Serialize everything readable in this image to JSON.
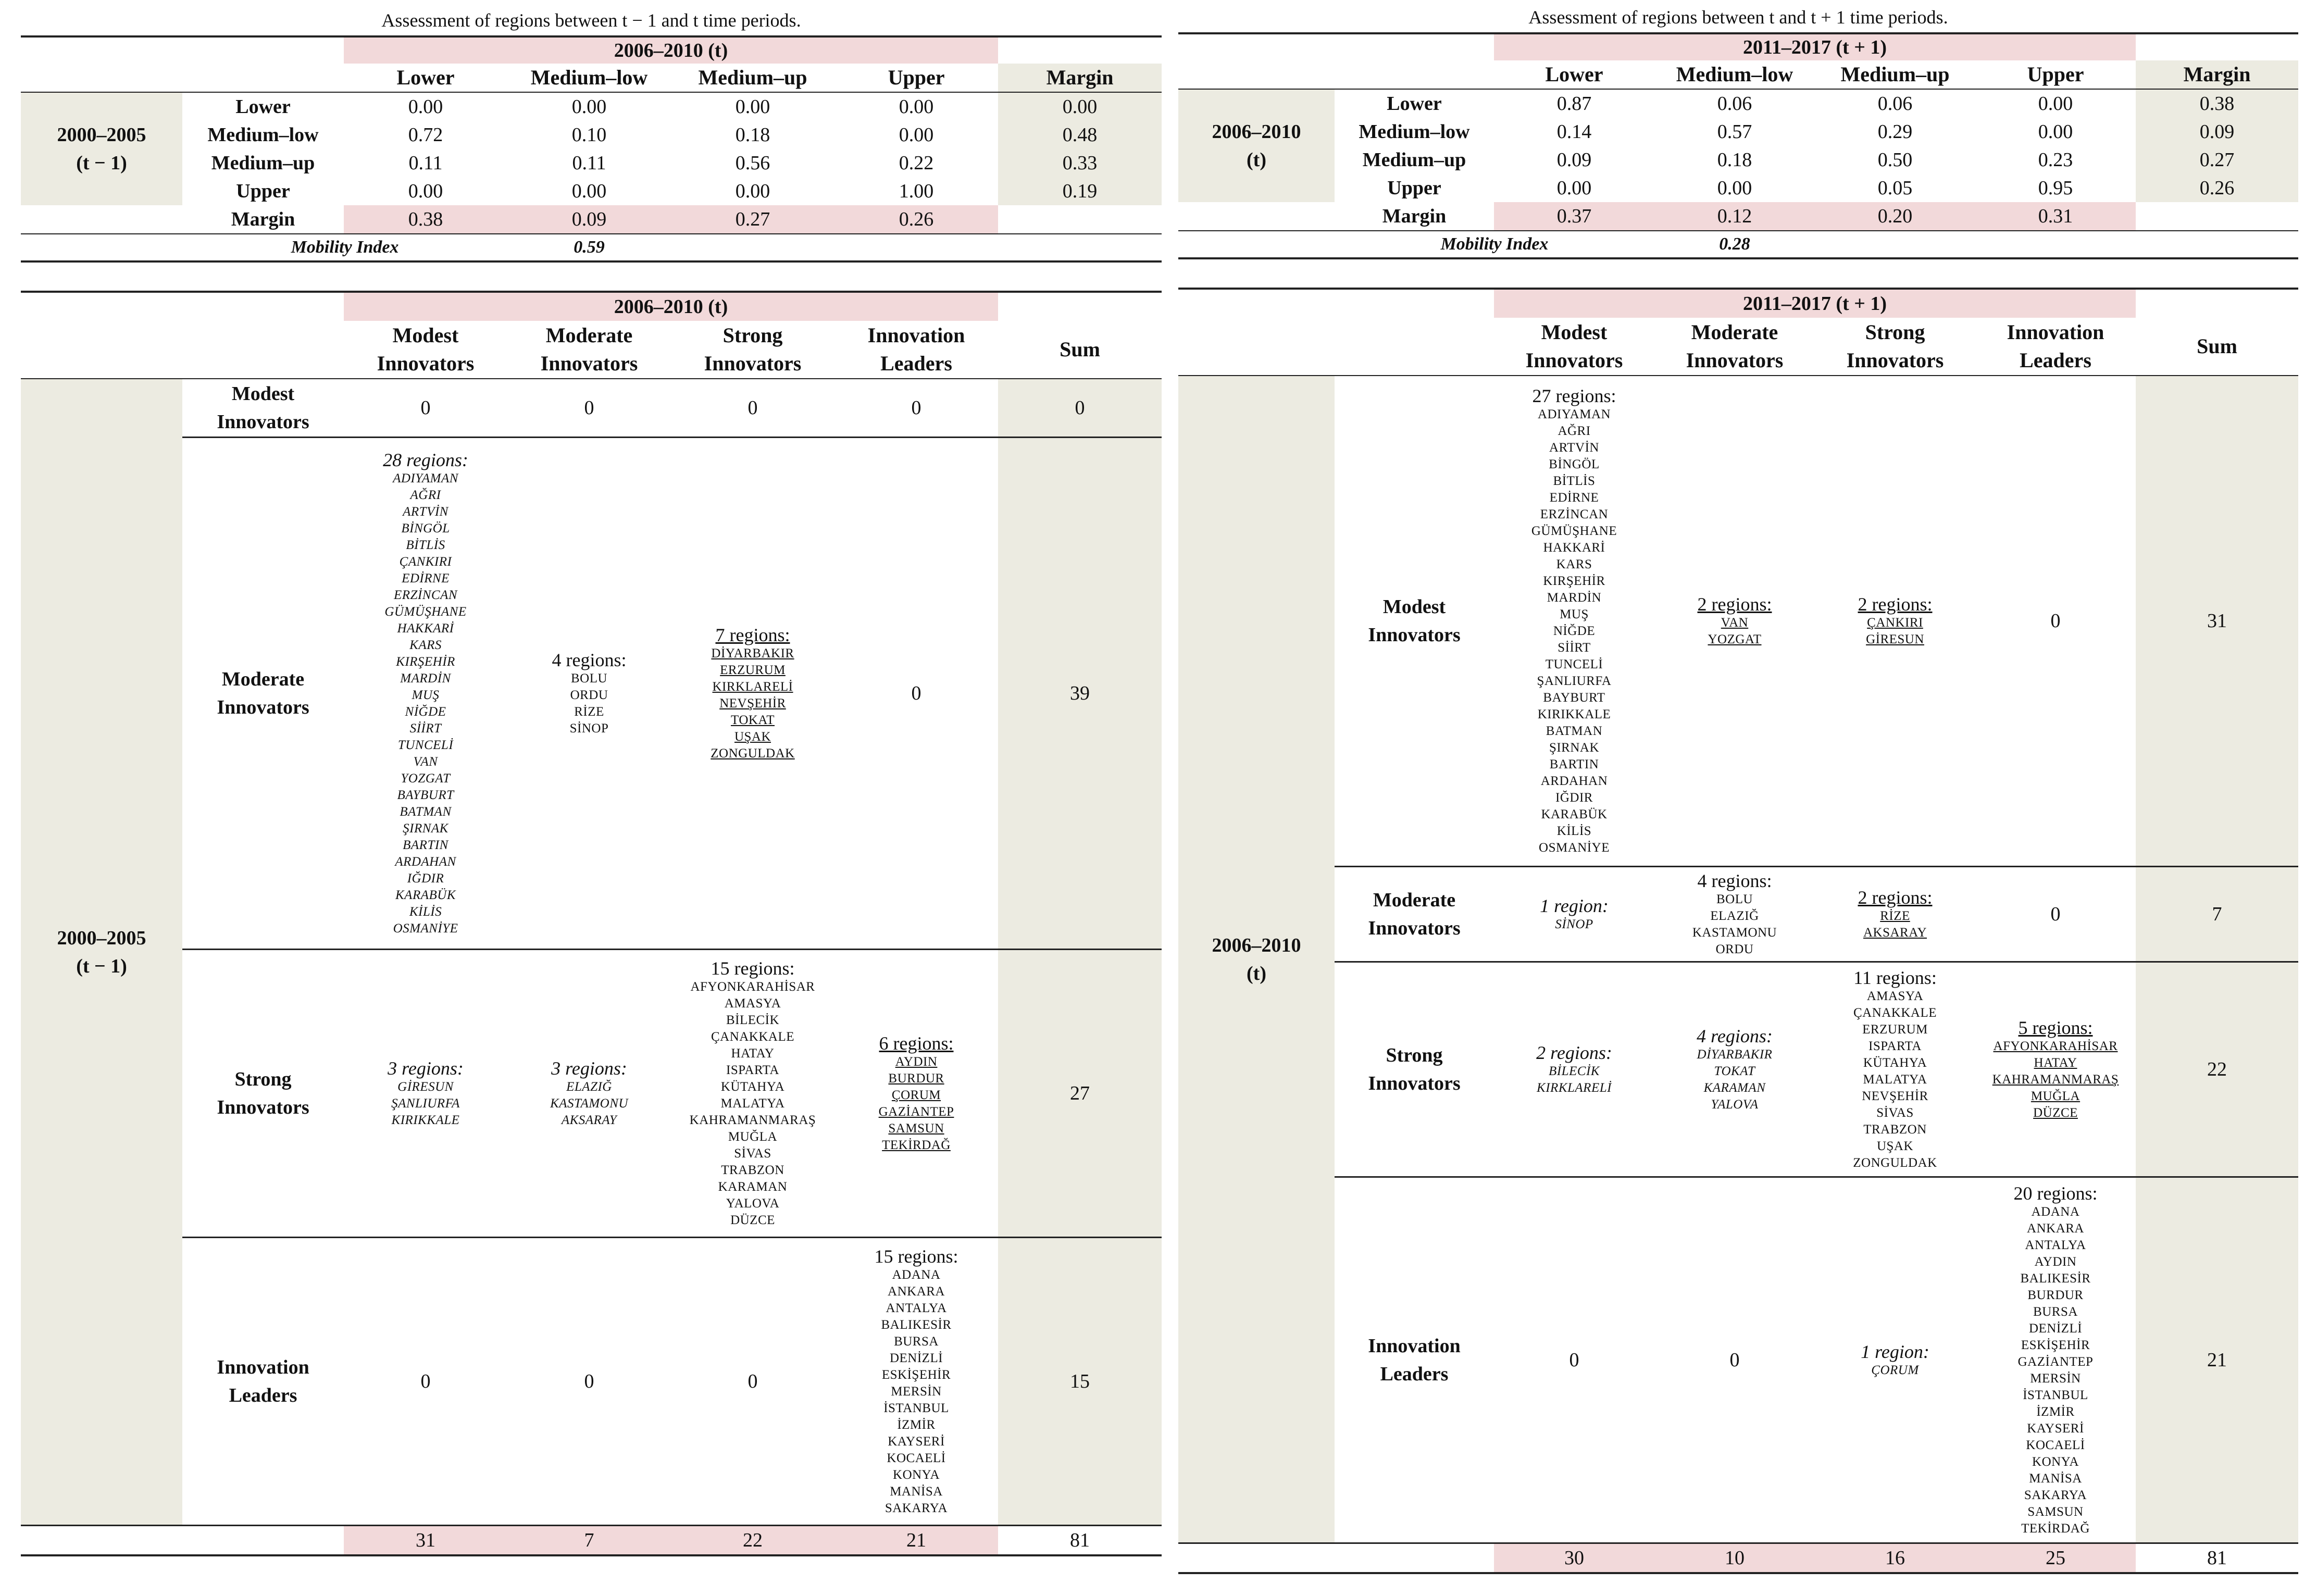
{
  "left": {
    "title": "Assessment of regions between t − 1 and t time periods.",
    "matrix": {
      "col_period": "2006–2010 (t)",
      "row_period": [
        "2000–2005",
        "(t − 1)"
      ],
      "columns": [
        "Lower",
        "Medium–low",
        "Medium–up",
        "Upper",
        "Margin"
      ],
      "rows": [
        {
          "label": "Lower",
          "values": [
            "0.00",
            "0.00",
            "0.00",
            "0.00"
          ],
          "margin": "0.00"
        },
        {
          "label": "Medium–low",
          "values": [
            "0.72",
            "0.10",
            "0.18",
            "0.00"
          ],
          "margin": "0.48"
        },
        {
          "label": "Medium–up",
          "values": [
            "0.11",
            "0.11",
            "0.56",
            "0.22"
          ],
          "margin": "0.33"
        },
        {
          "label": "Upper",
          "values": [
            "0.00",
            "0.00",
            "0.00",
            "1.00"
          ],
          "margin": "0.19"
        }
      ],
      "margin_label": "Margin",
      "margin_row": [
        "0.38",
        "0.09",
        "0.27",
        "0.26"
      ],
      "mobility_label": "Mobility Index",
      "mobility_value": "0.59"
    },
    "regions": {
      "col_period": "2006–2010 (t)",
      "row_period": [
        "2000–2005",
        "(t − 1)"
      ],
      "columns": [
        [
          "Modest",
          "Innovators"
        ],
        [
          "Moderate",
          "Innovators"
        ],
        [
          "Strong",
          "Innovators"
        ],
        [
          "Innovation",
          "Leaders"
        ]
      ],
      "sum_label": "Sum",
      "rows": [
        {
          "label": [
            "Modest",
            "Innovators"
          ],
          "sum": "0",
          "cells": [
            {
              "count": "0",
              "style": "plain",
              "list": []
            },
            {
              "count": "0",
              "style": "u",
              "list": []
            },
            {
              "count": "0",
              "style": "u",
              "list": []
            },
            {
              "count": "0",
              "style": "u",
              "list": []
            }
          ]
        },
        {
          "label": [
            "Moderate",
            "Innovators"
          ],
          "sum": "39",
          "cells": [
            {
              "count": "28 regions:",
              "style": "ital",
              "list": [
                "ADIYAMAN",
                "AĞRI",
                "ARTVİN",
                "BİNGÖL",
                "BİTLİS",
                "ÇANKIRI",
                "EDİRNE",
                "ERZİNCAN",
                "GÜMÜŞHANE",
                "HAKKARİ",
                "KARS",
                "KIRŞEHİR",
                "MARDİN",
                "MUŞ",
                "NİĞDE",
                "SİİRT",
                "TUNCELİ",
                "VAN",
                "YOZGAT",
                "BAYBURT",
                "BATMAN",
                "ŞIRNAK",
                "BARTIN",
                "ARDAHAN",
                "IĞDIR",
                "KARABÜK",
                "KİLİS",
                "OSMANİYE"
              ]
            },
            {
              "count": "4 regions:",
              "style": "plain",
              "list": [
                "BOLU",
                "ORDU",
                "RİZE",
                "SİNOP"
              ]
            },
            {
              "count": "7 regions:",
              "style": "u",
              "list": [
                "DİYARBAKIR",
                "ERZURUM",
                "KIRKLARELİ",
                "NEVŞEHİR",
                "TOKAT",
                "UŞAK",
                "ZONGULDAK"
              ]
            },
            {
              "count": "0",
              "style": "u",
              "list": []
            }
          ]
        },
        {
          "label": [
            "Strong",
            "Innovators"
          ],
          "sum": "27",
          "cells": [
            {
              "count": "3 regions:",
              "style": "ital",
              "list": [
                "GİRESUN",
                "ŞANLIURFA",
                "KIRIKKALE"
              ]
            },
            {
              "count": "3 regions:",
              "style": "ital",
              "list": [
                "ELAZIĞ",
                "KASTAMONU",
                "AKSARAY"
              ]
            },
            {
              "count": "15 regions:",
              "style": "plain",
              "list": [
                "AFYONKARAHİSAR",
                "AMASYA",
                "BİLECİK",
                "ÇANAKKALE",
                "HATAY",
                "ISPARTA",
                "KÜTAHYA",
                "MALATYA",
                "KAHRAMANMARAŞ",
                "MUĞLA",
                "SİVAS",
                "TRABZON",
                "KARAMAN",
                "YALOVA",
                "DÜZCE"
              ]
            },
            {
              "count": "6 regions:",
              "style": "u",
              "list": [
                "AYDIN",
                "BURDUR",
                "ÇORUM",
                "GAZİANTEP",
                "SAMSUN",
                "TEKİRDAĞ"
              ]
            }
          ]
        },
        {
          "label": [
            "Innovation",
            "Leaders"
          ],
          "sum": "15",
          "cells": [
            {
              "count": "0",
              "style": "ital",
              "list": []
            },
            {
              "count": "0",
              "style": "ital",
              "list": []
            },
            {
              "count": "0",
              "style": "ital",
              "list": []
            },
            {
              "count": "15 regions:",
              "style": "plain",
              "list": [
                "ADANA",
                "ANKARA",
                "ANTALYA",
                "BALIKESİR",
                "BURSA",
                "DENİZLİ",
                "ESKİŞEHİR",
                "MERSİN",
                "İSTANBUL",
                "İZMİR",
                "KAYSERİ",
                "KOCAELİ",
                "KONYA",
                "MANİSA",
                "SAKARYA"
              ]
            }
          ]
        }
      ],
      "col_sums": [
        "31",
        "7",
        "22",
        "21"
      ],
      "total": "81"
    }
  },
  "right": {
    "title": "Assessment of regions between t and t + 1 time periods.",
    "matrix": {
      "col_period": "2011–2017 (t + 1)",
      "row_period": [
        "2006–2010",
        "(t)"
      ],
      "columns": [
        "Lower",
        "Medium–low",
        "Medium–up",
        "Upper",
        "Margin"
      ],
      "rows": [
        {
          "label": "Lower",
          "values": [
            "0.87",
            "0.06",
            "0.06",
            "0.00"
          ],
          "margin": "0.38"
        },
        {
          "label": "Medium–low",
          "values": [
            "0.14",
            "0.57",
            "0.29",
            "0.00"
          ],
          "margin": "0.09"
        },
        {
          "label": "Medium–up",
          "values": [
            "0.09",
            "0.18",
            "0.50",
            "0.23"
          ],
          "margin": "0.27"
        },
        {
          "label": "Upper",
          "values": [
            "0.00",
            "0.00",
            "0.05",
            "0.95"
          ],
          "margin": "0.26"
        }
      ],
      "margin_label": "Margin",
      "margin_row": [
        "0.37",
        "0.12",
        "0.20",
        "0.31"
      ],
      "mobility_label": "Mobility Index",
      "mobility_value": "0.28"
    },
    "regions": {
      "col_period": "2011–2017 (t + 1)",
      "row_period": [
        "2006–2010",
        "(t)"
      ],
      "columns": [
        [
          "Modest",
          "Innovators"
        ],
        [
          "Moderate",
          "Innovators"
        ],
        [
          "Strong",
          "Innovators"
        ],
        [
          "Innovation",
          "Leaders"
        ]
      ],
      "sum_label": "Sum",
      "rows": [
        {
          "label": [
            "Modest",
            "Innovators"
          ],
          "sum": "31",
          "cells": [
            {
              "count": "27 regions:",
              "style": "plain",
              "list": [
                "ADIYAMAN",
                "AĞRI",
                "ARTVİN",
                "BİNGÖL",
                "BİTLİS",
                "EDİRNE",
                "ERZİNCAN",
                "GÜMÜŞHANE",
                "HAKKARİ",
                "KARS",
                "KIRŞEHİR",
                "MARDİN",
                "MUŞ",
                "NİĞDE",
                "SİİRT",
                "TUNCELİ",
                "ŞANLIURFA",
                "BAYBURT",
                "KIRIKKALE",
                "BATMAN",
                "ŞIRNAK",
                "BARTIN",
                "ARDAHAN",
                "IĞDIR",
                "KARABÜK",
                "KİLİS",
                "OSMANİYE"
              ]
            },
            {
              "count": "2 regions:",
              "style": "u",
              "list": [
                "VAN",
                "YOZGAT"
              ]
            },
            {
              "count": "2 regions:",
              "style": "u",
              "list": [
                "ÇANKIRI",
                "GİRESUN"
              ]
            },
            {
              "count": "0",
              "style": "u",
              "list": []
            }
          ]
        },
        {
          "label": [
            "Moderate",
            "Innovators"
          ],
          "sum": "7",
          "cells": [
            {
              "count": "1 region:",
              "style": "ital",
              "list": [
                "SİNOP"
              ]
            },
            {
              "count": "4 regions:",
              "style": "plain",
              "list": [
                "BOLU",
                "ELAZIĞ",
                "KASTAMONU",
                "ORDU"
              ]
            },
            {
              "count": "2 regions:",
              "style": "u",
              "list": [
                "RİZE",
                "AKSARAY"
              ]
            },
            {
              "count": "0",
              "style": "u",
              "list": []
            }
          ]
        },
        {
          "label": [
            "Strong",
            "Innovators"
          ],
          "sum": "22",
          "cells": [
            {
              "count": "2 regions:",
              "style": "ital",
              "list": [
                "BİLECİK",
                "KIRKLARELİ"
              ]
            },
            {
              "count": "4 regions:",
              "style": "ital",
              "list": [
                "DİYARBAKIR",
                "TOKAT",
                "KARAMAN",
                "YALOVA"
              ]
            },
            {
              "count": "11 regions:",
              "style": "plain",
              "list": [
                "AMASYA",
                "ÇANAKKALE",
                "ERZURUM",
                "ISPARTA",
                "KÜTAHYA",
                "MALATYA",
                "NEVŞEHİR",
                "SİVAS",
                "TRABZON",
                "UŞAK",
                "ZONGULDAK"
              ]
            },
            {
              "count": "5 regions:",
              "style": "u",
              "list": [
                "AFYONKARAHİSAR",
                "HATAY",
                "KAHRAMANMARAŞ",
                "MUĞLA",
                "DÜZCE"
              ]
            }
          ]
        },
        {
          "label": [
            "Innovation",
            "Leaders"
          ],
          "sum": "21",
          "cells": [
            {
              "count": "0",
              "style": "ital",
              "list": []
            },
            {
              "count": "0",
              "style": "ital",
              "list": []
            },
            {
              "count": "1 region:",
              "style": "ital",
              "list": [
                "ÇORUM"
              ]
            },
            {
              "count": "20 regions:",
              "style": "plain",
              "list": [
                "ADANA",
                "ANKARA",
                "ANTALYA",
                "AYDIN",
                "BALIKESİR",
                "BURDUR",
                "BURSA",
                "DENİZLİ",
                "ESKİŞEHİR",
                "GAZİANTEP",
                "MERSİN",
                "İSTANBUL",
                "İZMİR",
                "KAYSERİ",
                "KOCAELİ",
                "KONYA",
                "MANİSA",
                "SAKARYA",
                "SAMSUN",
                "TEKİRDAĞ"
              ]
            }
          ]
        }
      ],
      "col_sums": [
        "30",
        "10",
        "16",
        "25"
      ],
      "total": "81"
    }
  }
}
